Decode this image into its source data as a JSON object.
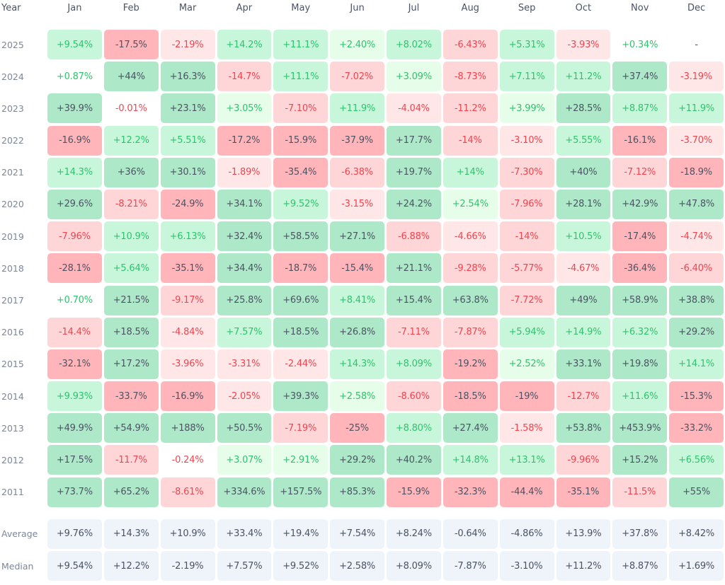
{
  "chart_data": {
    "type": "heatmap",
    "header": "Year",
    "categories": [
      "Jan",
      "Feb",
      "Mar",
      "Apr",
      "May",
      "Jun",
      "Jul",
      "Aug",
      "Sep",
      "Oct",
      "Nov",
      "Dec"
    ],
    "rows": [
      {
        "year": "2025",
        "values": [
          "+9.54%",
          "-17.5%",
          "-2.19%",
          "+14.2%",
          "+11.1%",
          "+2.40%",
          "+8.02%",
          "-6.43%",
          "+5.31%",
          "-3.93%",
          "+0.34%",
          "-"
        ]
      },
      {
        "year": "2024",
        "values": [
          "+0.87%",
          "+44%",
          "+16.3%",
          "-14.7%",
          "+11.1%",
          "-7.02%",
          "+3.09%",
          "-8.73%",
          "+7.11%",
          "+11.2%",
          "+37.4%",
          "-3.19%"
        ]
      },
      {
        "year": "2023",
        "values": [
          "+39.9%",
          "-0.01%",
          "+23.1%",
          "+3.05%",
          "-7.10%",
          "+11.9%",
          "-4.04%",
          "-11.2%",
          "+3.99%",
          "+28.5%",
          "+8.87%",
          "+11.9%"
        ]
      },
      {
        "year": "2022",
        "values": [
          "-16.9%",
          "+12.2%",
          "+5.51%",
          "-17.2%",
          "-15.9%",
          "-37.9%",
          "+17.7%",
          "-14%",
          "-3.10%",
          "+5.55%",
          "-16.1%",
          "-3.70%"
        ]
      },
      {
        "year": "2021",
        "values": [
          "+14.3%",
          "+36%",
          "+30.1%",
          "-1.89%",
          "-35.4%",
          "-6.38%",
          "+19.7%",
          "+14%",
          "-7.30%",
          "+40%",
          "-7.12%",
          "-18.9%"
        ]
      },
      {
        "year": "2020",
        "values": [
          "+29.6%",
          "-8.21%",
          "-24.9%",
          "+34.1%",
          "+9.52%",
          "-3.15%",
          "+24.2%",
          "+2.54%",
          "-7.96%",
          "+28.1%",
          "+42.9%",
          "+47.8%"
        ]
      },
      {
        "year": "2019",
        "values": [
          "-7.96%",
          "+10.9%",
          "+6.13%",
          "+32.4%",
          "+58.5%",
          "+27.1%",
          "-6.88%",
          "-4.66%",
          "-14%",
          "+10.5%",
          "-17.4%",
          "-4.74%"
        ]
      },
      {
        "year": "2018",
        "values": [
          "-28.1%",
          "+5.64%",
          "-35.1%",
          "+34.4%",
          "-18.7%",
          "-15.4%",
          "+21.1%",
          "-9.28%",
          "-5.77%",
          "-4.67%",
          "-36.4%",
          "-6.40%"
        ]
      },
      {
        "year": "2017",
        "values": [
          "+0.70%",
          "+21.5%",
          "-9.17%",
          "+25.8%",
          "+69.6%",
          "+8.41%",
          "+15.4%",
          "+63.8%",
          "-7.72%",
          "+49%",
          "+58.9%",
          "+38.8%"
        ]
      },
      {
        "year": "2016",
        "values": [
          "-14.4%",
          "+18.5%",
          "-4.84%",
          "+7.57%",
          "+18.5%",
          "+26.8%",
          "-7.11%",
          "-7.87%",
          "+5.94%",
          "+14.9%",
          "+6.32%",
          "+29.2%"
        ]
      },
      {
        "year": "2015",
        "values": [
          "-32.1%",
          "+17.2%",
          "-3.96%",
          "-3.31%",
          "-2.44%",
          "+14.3%",
          "+8.09%",
          "-19.2%",
          "+2.52%",
          "+33.1%",
          "+19.8%",
          "+14.1%"
        ]
      },
      {
        "year": "2014",
        "values": [
          "+9.93%",
          "-33.7%",
          "-16.9%",
          "-2.05%",
          "+39.3%",
          "+2.58%",
          "-8.60%",
          "-18.5%",
          "-19%",
          "-12.7%",
          "+11.6%",
          "-15.3%"
        ]
      },
      {
        "year": "2013",
        "values": [
          "+49.9%",
          "+54.9%",
          "+188%",
          "+50.5%",
          "-7.19%",
          "-25%",
          "+8.80%",
          "+27.4%",
          "-1.58%",
          "+53.8%",
          "+453.9%",
          "-33.2%"
        ]
      },
      {
        "year": "2012",
        "values": [
          "+17.5%",
          "-11.7%",
          "-0.24%",
          "+3.07%",
          "+2.91%",
          "+29.2%",
          "+40.2%",
          "+14.8%",
          "+13.1%",
          "-9.96%",
          "+15.2%",
          "+6.56%"
        ]
      },
      {
        "year": "2011",
        "values": [
          "+73.7%",
          "+65.2%",
          "-8.61%",
          "+334.6%",
          "+157.5%",
          "+85.3%",
          "-15.9%",
          "-32.3%",
          "-44.4%",
          "-35.1%",
          "-11.5%",
          "+55%"
        ]
      }
    ],
    "summary": [
      {
        "label": "Average",
        "values": [
          "+9.76%",
          "+14.3%",
          "+10.9%",
          "+33.4%",
          "+19.4%",
          "+7.54%",
          "+8.24%",
          "-0.64%",
          "-4.86%",
          "+13.9%",
          "+37.8%",
          "+8.42%"
        ]
      },
      {
        "label": "Median",
        "values": [
          "+9.54%",
          "+12.2%",
          "-2.19%",
          "+7.57%",
          "+9.52%",
          "+2.58%",
          "+8.09%",
          "-7.87%",
          "-3.10%",
          "+11.2%",
          "+8.87%",
          "+1.69%"
        ]
      }
    ],
    "colors": {
      "positive_strong": "#ade9c8",
      "positive_medium": "#c8f6da",
      "positive_light": "#e6fde9",
      "negative_strong": "#ffb5b9",
      "negative_medium": "#ffd6d8",
      "negative_light": "#ffe7e8",
      "summary": "#eff3fa",
      "positive_text": "#2ec46d",
      "negative_text": "#f1444f",
      "neutral_text": "#4b5363"
    }
  }
}
